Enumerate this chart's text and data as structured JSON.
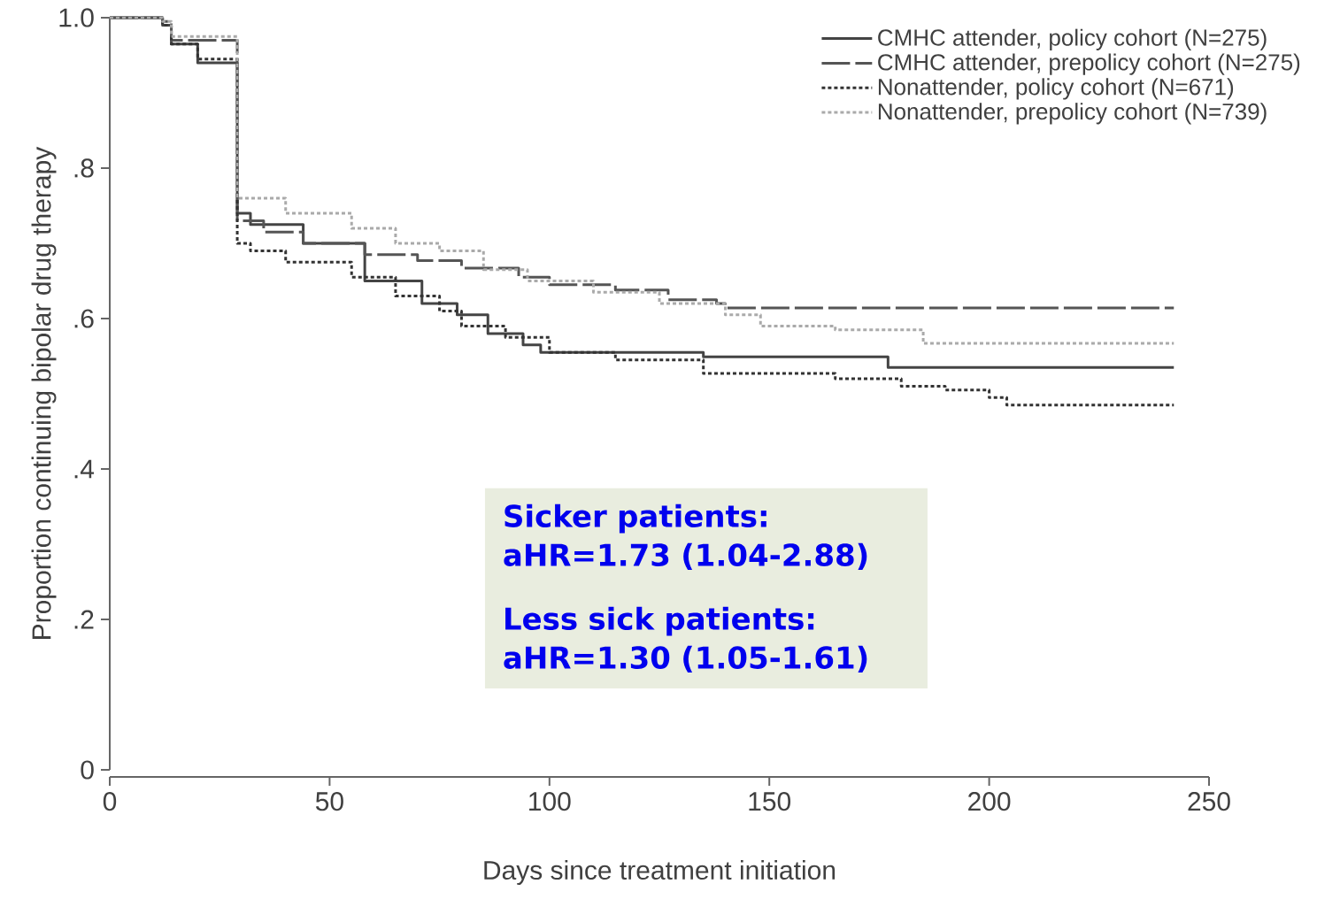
{
  "chart_data": {
    "type": "step",
    "xlabel": "Days since treatment initiation",
    "ylabel": "Proportion continuing bipolar drug therapy",
    "xlim": [
      0,
      250
    ],
    "ylim": [
      0,
      1
    ],
    "xticks": [
      0,
      50,
      100,
      150,
      200,
      250
    ],
    "yticks": [
      {
        "value": 0,
        "label": "0"
      },
      {
        "value": 0.2,
        "label": ".2"
      },
      {
        "value": 0.4,
        "label": ".4"
      },
      {
        "value": 0.6,
        "label": ".6"
      },
      {
        "value": 0.8,
        "label": ".8"
      },
      {
        "value": 1,
        "label": "1.0"
      }
    ],
    "grid": false,
    "legend": "top right",
    "series": [
      {
        "name": "CMHC attender, policy cohort (N=275)",
        "color": "#444444",
        "line_style": "solid",
        "x": [
          0,
          12,
          14,
          20,
          29,
          32,
          44,
          58,
          71,
          79,
          86,
          94,
          98,
          135,
          177,
          242
        ],
        "values": [
          1,
          0.99,
          0.965,
          0.94,
          0.74,
          0.725,
          0.7,
          0.65,
          0.62,
          0.605,
          0.58,
          0.565,
          0.555,
          0.549,
          0.535,
          0.535
        ]
      },
      {
        "name": "CMHC attender, prepolicy cohort (N=275)",
        "color": "#555555",
        "line_style": "dashed",
        "x": [
          0,
          12,
          14,
          29,
          35,
          44,
          58,
          70,
          80,
          93,
          100,
          115,
          127,
          138,
          140,
          242
        ],
        "values": [
          1,
          0.995,
          0.97,
          0.73,
          0.715,
          0.7,
          0.685,
          0.677,
          0.667,
          0.655,
          0.645,
          0.638,
          0.625,
          0.62,
          0.614,
          0.614
        ]
      },
      {
        "name": "Nonattender, policy cohort (N=671)",
        "color": "#333333",
        "line_style": "dotted",
        "x": [
          0,
          12,
          14,
          20,
          29,
          32,
          40,
          55,
          65,
          75,
          80,
          90,
          100,
          115,
          135,
          165,
          180,
          190,
          200,
          204,
          242
        ],
        "values": [
          1,
          0.99,
          0.965,
          0.945,
          0.7,
          0.69,
          0.675,
          0.655,
          0.63,
          0.61,
          0.59,
          0.575,
          0.555,
          0.545,
          0.527,
          0.52,
          0.51,
          0.505,
          0.495,
          0.485,
          0.485
        ]
      },
      {
        "name": "Nonattender, prepolicy cohort (N=739)",
        "color": "#aaaaaa",
        "line_style": "dotted",
        "x": [
          0,
          12,
          14,
          29,
          40,
          55,
          65,
          75,
          85,
          95,
          110,
          125,
          140,
          148,
          165,
          185,
          242
        ],
        "values": [
          1,
          0.995,
          0.975,
          0.76,
          0.74,
          0.72,
          0.7,
          0.69,
          0.665,
          0.65,
          0.635,
          0.62,
          0.605,
          0.59,
          0.585,
          0.567,
          0.567
        ]
      }
    ],
    "annotations": [
      "Sicker patients:",
      "aHR=1.73 (1.04-2.88)",
      "Less sick patients:",
      "aHR=1.30 (1.05-1.61)"
    ]
  }
}
